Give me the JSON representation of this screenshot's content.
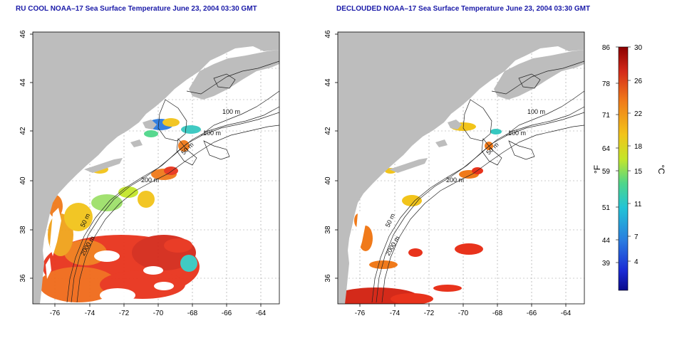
{
  "left_map": {
    "title": "RU COOL NOAA–17 Sea Surface Temperature June 23, 2004 03:30 GMT",
    "lon_ticks": [
      "-76",
      "-74",
      "-72",
      "-70",
      "-68",
      "-66",
      "-64"
    ],
    "lat_ticks": [
      "36",
      "38",
      "40",
      "42",
      "44",
      "46"
    ],
    "isobaths": [
      "100 m",
      "100 m",
      "50 m",
      "200 m",
      "50 m",
      "2000 m"
    ]
  },
  "right_map": {
    "title": "DECLOUDED NOAA–17 Sea Surface Temperature June 23, 2004 03:30 GMT",
    "lon_ticks": [
      "-76",
      "-74",
      "-72",
      "-70",
      "-68",
      "-66",
      "-64"
    ],
    "lat_ticks": [
      "36",
      "38",
      "40",
      "42",
      "44",
      "46"
    ],
    "isobaths": [
      "100 m",
      "100 m",
      "50 m",
      "200 m",
      "50 m",
      "2000 m"
    ]
  },
  "colorbar": {
    "fahrenheit_ticks": [
      "86",
      "78",
      "71",
      "64",
      "59",
      "51",
      "44",
      "39"
    ],
    "celsius_ticks": [
      "30",
      "26",
      "22",
      "18",
      "15",
      "11",
      "7",
      "4"
    ],
    "fahrenheit_unit": "°F",
    "celsius_unit": "°C",
    "colors": [
      "#8b0000",
      "#d42a1a",
      "#f07a1a",
      "#f2c41a",
      "#c4e62a",
      "#4fd68a",
      "#22c4d6",
      "#2a7ae0",
      "#1a2ad4",
      "#0a0a8a"
    ]
  },
  "colors": {
    "land": "#bdbdbd",
    "title": "#1a1aa8",
    "warm": "#e8331c",
    "mid": "#f5c020",
    "cool": "#36c8c0"
  }
}
